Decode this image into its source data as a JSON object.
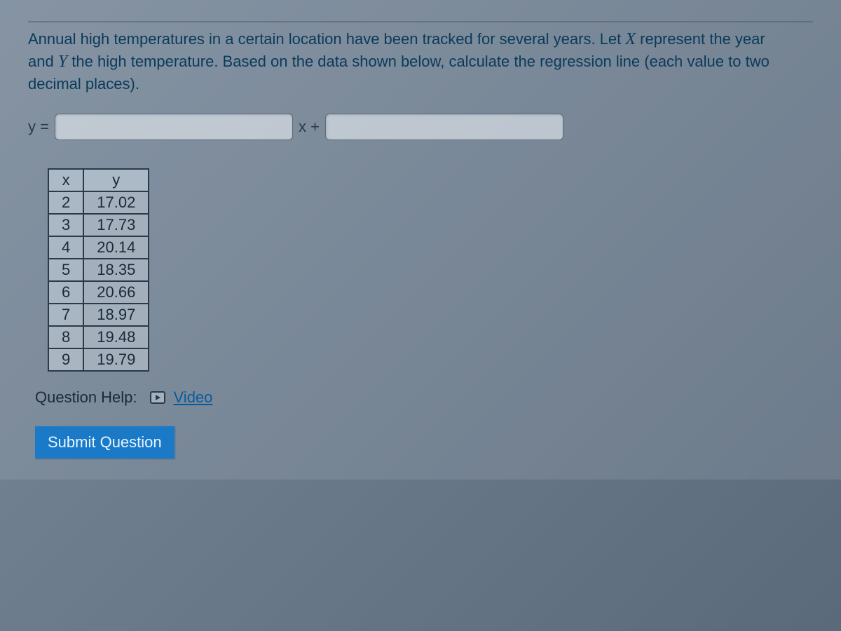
{
  "question": {
    "text_before_x": "Annual high temperatures in a certain location have been tracked for several years. Let ",
    "var_x": "X",
    "text_mid1": " represent the year and ",
    "var_y": "Y",
    "text_after": " the high temperature. Based on the data shown below, calculate the regression line (each value to two decimal places)."
  },
  "equation": {
    "lhs": "y =",
    "mid": "x +",
    "slope_value": "",
    "intercept_value": ""
  },
  "table": {
    "columns": [
      "x",
      "y"
    ],
    "rows": [
      [
        "2",
        "17.02"
      ],
      [
        "3",
        "17.73"
      ],
      [
        "4",
        "20.14"
      ],
      [
        "5",
        "18.35"
      ],
      [
        "6",
        "20.66"
      ],
      [
        "7",
        "18.97"
      ],
      [
        "8",
        "19.48"
      ],
      [
        "9",
        "19.79"
      ]
    ]
  },
  "help": {
    "label": "Question Help:",
    "video_label": "Video"
  },
  "submit": {
    "label": "Submit Question"
  },
  "colors": {
    "question_text": "#0a3a5a",
    "link": "#0a5a9a",
    "submit_bg": "#1a7ac8",
    "submit_text": "#e8f4ff",
    "table_border": "#2a3a4a"
  }
}
